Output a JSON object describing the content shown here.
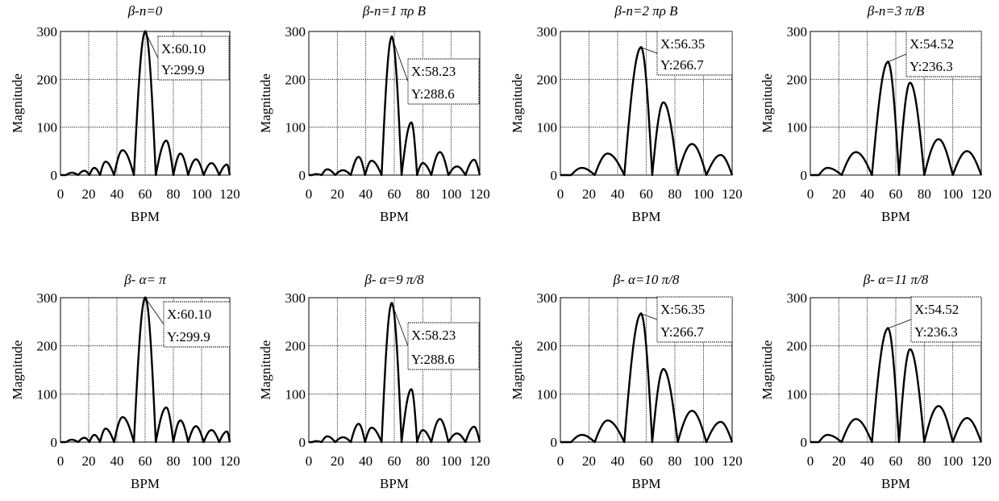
{
  "colors": {
    "line": "#000000",
    "grid": "#000000",
    "background": "#ffffff"
  },
  "chart_data": [
    {
      "type": "line",
      "title": "β-n=0",
      "xlabel": "BPM",
      "ylabel": "Magnitude",
      "xlim": [
        0,
        120
      ],
      "ylim": [
        0,
        300
      ],
      "xticks": [
        "0",
        "20",
        "40",
        "60",
        "80",
        "100",
        "120"
      ],
      "yticks": [
        "0",
        "100",
        "200",
        "300"
      ],
      "grid": true,
      "annotation": {
        "x_label": "X:60.10",
        "y_label": "Y:299.9",
        "x": 60.1,
        "y": 299.9
      },
      "series": [
        {
          "peaks": [
            [
              0,
              0
            ],
            [
              8,
              5
            ],
            [
              17,
              9
            ],
            [
              24,
              15
            ],
            [
              32,
              28
            ],
            [
              44,
              52
            ],
            [
              60.1,
              299.9
            ],
            [
              75,
              72
            ],
            [
              85,
              45
            ],
            [
              96,
              33
            ],
            [
              107,
              25
            ],
            [
              118,
              22
            ]
          ]
        }
      ]
    },
    {
      "type": "line",
      "title": "β-n=1 πρ B",
      "xlabel": "BPM",
      "ylabel": "Magnitude",
      "xlim": [
        0,
        120
      ],
      "ylim": [
        0,
        300
      ],
      "xticks": [
        "0",
        "20",
        "40",
        "60",
        "80",
        "100",
        "120"
      ],
      "yticks": [
        "0",
        "100",
        "200",
        "300"
      ],
      "grid": true,
      "annotation": {
        "x_label": "X:58.23",
        "y_label": "Y:288.6",
        "x": 58.23,
        "y": 288.6
      },
      "series": [
        {
          "peaks": [
            [
              0,
              0
            ],
            [
              5,
              2
            ],
            [
              13,
              12
            ],
            [
              24,
              10
            ],
            [
              35,
              38
            ],
            [
              44,
              30
            ],
            [
              58.23,
              288.6
            ],
            [
              72,
              110
            ],
            [
              80,
              25
            ],
            [
              92,
              48
            ],
            [
              104,
              18
            ],
            [
              116,
              32
            ]
          ]
        }
      ]
    },
    {
      "type": "line",
      "title": "β-n=2 πρ B",
      "xlabel": "BPM",
      "ylabel": "Magnitude",
      "xlim": [
        0,
        120
      ],
      "ylim": [
        0,
        300
      ],
      "xticks": [
        "0",
        "20",
        "40",
        "60",
        "80",
        "100",
        "120"
      ],
      "yticks": [
        "0",
        "100",
        "200",
        "300"
      ],
      "grid": true,
      "annotation": {
        "x_label": "X:56.35",
        "y_label": "Y:266.7",
        "x": 56.35,
        "y": 266.7
      },
      "series": [
        {
          "peaks": [
            [
              0,
              0
            ],
            [
              15,
              15
            ],
            [
              33,
              45
            ],
            [
              56.35,
              266.7
            ],
            [
              72,
              152
            ],
            [
              92,
              65
            ],
            [
              112,
              42
            ]
          ]
        }
      ]
    },
    {
      "type": "line",
      "title": "β-n=3 π/B",
      "xlabel": "BPM",
      "ylabel": "Magnitude",
      "xlim": [
        0,
        120
      ],
      "ylim": [
        0,
        300
      ],
      "xticks": [
        "0",
        "20",
        "40",
        "60",
        "80",
        "100",
        "120"
      ],
      "yticks": [
        "0",
        "100",
        "200",
        "300"
      ],
      "grid": true,
      "annotation": {
        "x_label": "X:54.52",
        "y_label": "Y:236.3",
        "x": 54.52,
        "y": 236.3
      },
      "series": [
        {
          "peaks": [
            [
              0,
              0
            ],
            [
              12,
              15
            ],
            [
              32,
              48
            ],
            [
              54.52,
              236.3
            ],
            [
              70,
              193
            ],
            [
              90,
              75
            ],
            [
              110,
              50
            ]
          ]
        }
      ]
    },
    {
      "type": "line",
      "title": "β- α= π",
      "xlabel": "BPM",
      "ylabel": "Magnitude",
      "xlim": [
        0,
        120
      ],
      "ylim": [
        0,
        300
      ],
      "xticks": [
        "0",
        "20",
        "40",
        "60",
        "80",
        "100",
        "120"
      ],
      "yticks": [
        "0",
        "100",
        "200",
        "300"
      ],
      "grid": true,
      "annotation": {
        "x_label": "X:60.10",
        "y_label": "Y:299.9",
        "x": 60.1,
        "y": 299.9
      },
      "series": [
        {
          "peaks": [
            [
              0,
              0
            ],
            [
              8,
              5
            ],
            [
              17,
              9
            ],
            [
              24,
              15
            ],
            [
              32,
              28
            ],
            [
              44,
              52
            ],
            [
              60.1,
              299.9
            ],
            [
              75,
              72
            ],
            [
              85,
              45
            ],
            [
              96,
              33
            ],
            [
              107,
              25
            ],
            [
              118,
              22
            ]
          ]
        }
      ]
    },
    {
      "type": "line",
      "title": "β- α=9 π/8",
      "xlabel": "BPM",
      "ylabel": "Magnitude",
      "xlim": [
        0,
        120
      ],
      "ylim": [
        0,
        300
      ],
      "xticks": [
        "0",
        "20",
        "40",
        "60",
        "80",
        "100",
        "120"
      ],
      "yticks": [
        "0",
        "100",
        "200",
        "300"
      ],
      "grid": true,
      "annotation": {
        "x_label": "X:58.23",
        "y_label": "Y:288.6",
        "x": 58.23,
        "y": 288.6
      },
      "series": [
        {
          "peaks": [
            [
              0,
              0
            ],
            [
              5,
              2
            ],
            [
              13,
              12
            ],
            [
              24,
              10
            ],
            [
              35,
              38
            ],
            [
              44,
              30
            ],
            [
              58.23,
              288.6
            ],
            [
              72,
              110
            ],
            [
              80,
              25
            ],
            [
              92,
              48
            ],
            [
              104,
              18
            ],
            [
              116,
              32
            ]
          ]
        }
      ]
    },
    {
      "type": "line",
      "title": "β- α=10 π/8",
      "xlabel": "BPM",
      "ylabel": "Magnitude",
      "xlim": [
        0,
        120
      ],
      "ylim": [
        0,
        300
      ],
      "xticks": [
        "0",
        "20",
        "40",
        "60",
        "80",
        "100",
        "120"
      ],
      "yticks": [
        "0",
        "100",
        "200",
        "300"
      ],
      "grid": true,
      "annotation": {
        "x_label": "X:56.35",
        "y_label": "Y:266.7",
        "x": 56.35,
        "y": 266.7
      },
      "series": [
        {
          "peaks": [
            [
              0,
              0
            ],
            [
              15,
              15
            ],
            [
              33,
              45
            ],
            [
              56.35,
              266.7
            ],
            [
              72,
              152
            ],
            [
              92,
              65
            ],
            [
              112,
              42
            ]
          ]
        }
      ]
    },
    {
      "type": "line",
      "title": "β- α=11 π/8",
      "xlabel": "BPM",
      "ylabel": "Magnitude",
      "xlim": [
        0,
        120
      ],
      "ylim": [
        0,
        300
      ],
      "xticks": [
        "0",
        "20",
        "40",
        "60",
        "80",
        "100",
        "120"
      ],
      "yticks": [
        "0",
        "100",
        "200",
        "300"
      ],
      "grid": true,
      "annotation": {
        "x_label": "X:54.52",
        "y_label": "Y:236.3",
        "x": 54.52,
        "y": 236.3
      },
      "series": [
        {
          "peaks": [
            [
              0,
              0
            ],
            [
              12,
              15
            ],
            [
              32,
              48
            ],
            [
              54.52,
              236.3
            ],
            [
              70,
              193
            ],
            [
              90,
              75
            ],
            [
              110,
              50
            ]
          ]
        }
      ]
    }
  ]
}
